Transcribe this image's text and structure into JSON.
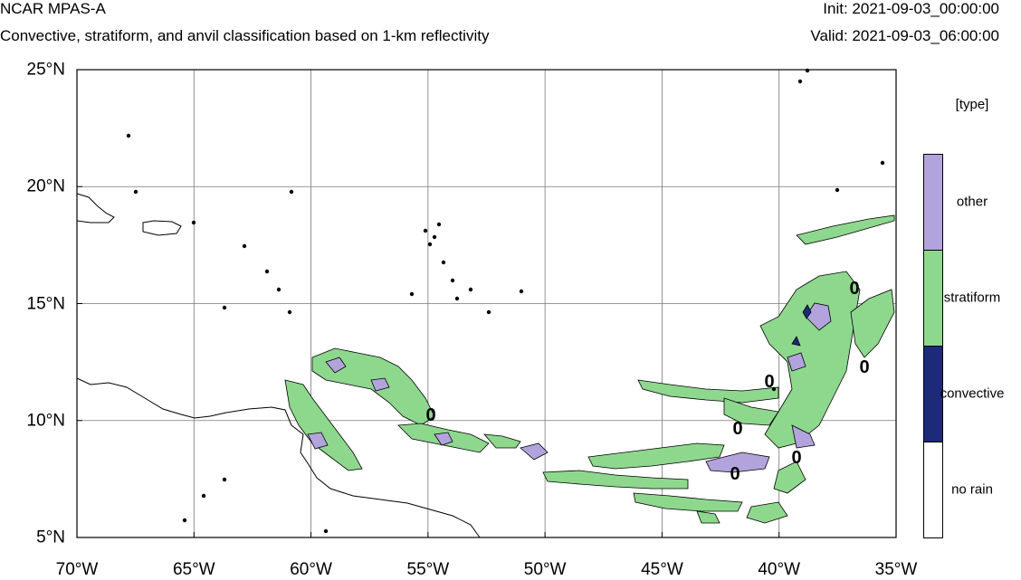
{
  "header": {
    "model": "NCAR MPAS-A",
    "description": "Convective, stratiform, and anvil classification based on 1-km reflectivity",
    "init": "Init: 2021-09-03_00:00:00",
    "valid": "Valid: 2021-09-03_06:00:00"
  },
  "axes": {
    "lat_labels": [
      "25°N",
      "20°N",
      "15°N",
      "10°N",
      "5°N"
    ],
    "lon_labels": [
      "70°W",
      "65°W",
      "60°W",
      "55°W",
      "50°W",
      "45°W",
      "40°W",
      "35°W"
    ],
    "lat_range": [
      5,
      25
    ],
    "lon_range": [
      -70,
      -35
    ],
    "grid": true
  },
  "legend": {
    "title": "[type]",
    "items": [
      {
        "label": "other",
        "color": "#b3a3dc"
      },
      {
        "label": "stratiform",
        "color": "#8ed88e"
      },
      {
        "label": "convective",
        "color": "#1c2a78"
      },
      {
        "label": "no rain",
        "color": "#ffffff"
      }
    ]
  },
  "annotations": [
    "0",
    "0",
    "0",
    "0",
    "0",
    "0",
    "0"
  ],
  "colors": {
    "stratiform": "#8ed88e",
    "other": "#b3a3dc",
    "convective": "#1c2a78"
  }
}
